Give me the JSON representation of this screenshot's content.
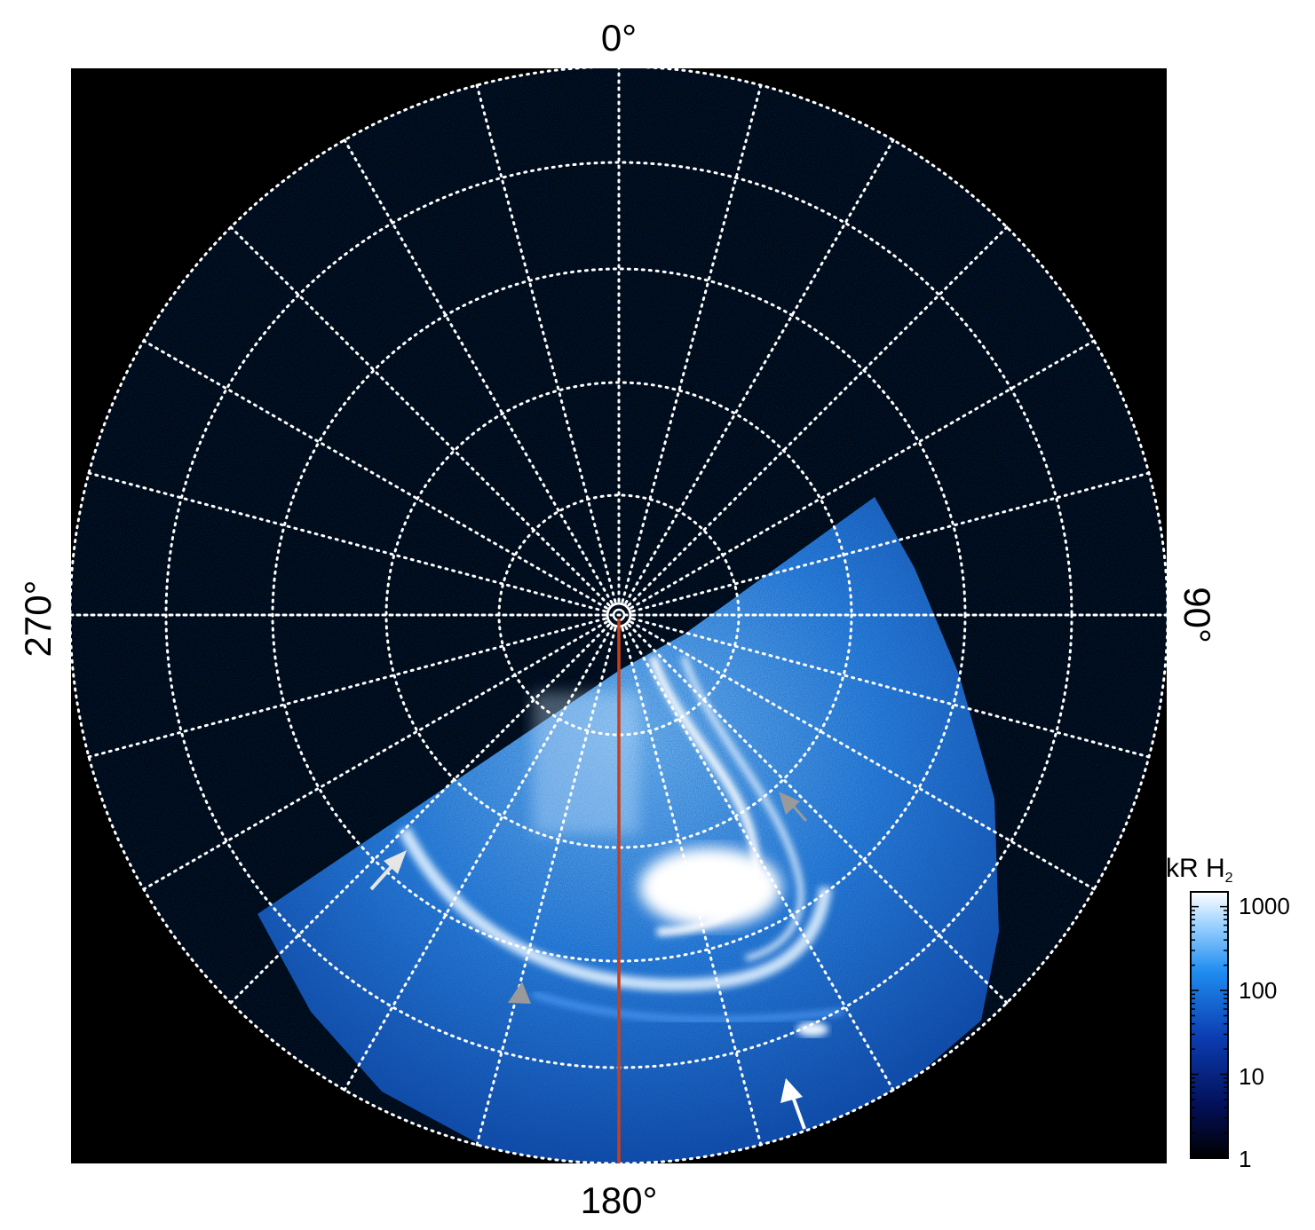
{
  "labels": {
    "top": "0°",
    "bottom": "180°",
    "left": "270°",
    "right": "90°"
  },
  "colorbar": {
    "title_main": "kR H",
    "title_sub": "2",
    "ticks": [
      "1000",
      "100",
      "10",
      "1"
    ],
    "scale": "log",
    "range": [
      1,
      1500
    ]
  },
  "colors": {
    "background": "#000000",
    "grid": "#ffffff",
    "meridian_line": "#c8401a",
    "aurora_dim": "#0a3a9c",
    "aurora_mid": "#1f7fe0",
    "aurora_bright": "#ffffff"
  },
  "grid": {
    "meridian_step_deg": 15,
    "ring_count": 6
  },
  "annotations": [
    {
      "name": "white-arrow-left",
      "color": "#e6e6e6"
    },
    {
      "name": "white-arrow-bottom-right",
      "color": "#ffffff"
    },
    {
      "name": "gray-arrow-center-left",
      "color": "#9a9a9a"
    },
    {
      "name": "gray-arrow-upper-right",
      "color": "#9a9a9a"
    }
  ]
}
